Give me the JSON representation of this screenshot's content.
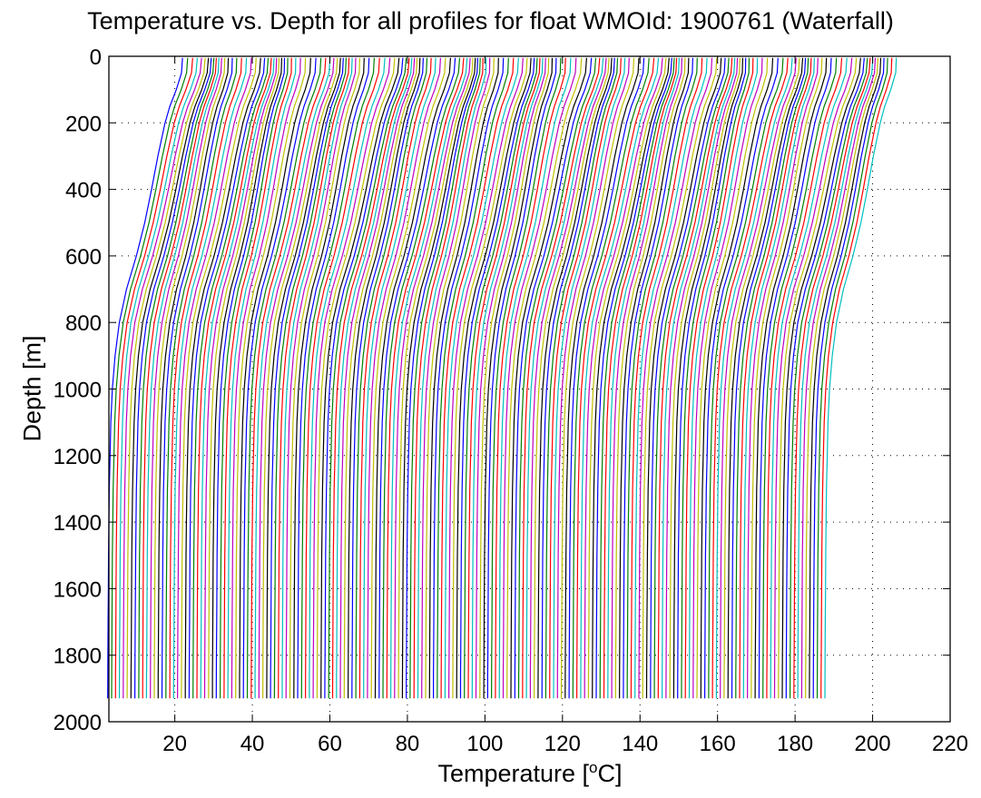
{
  "figure": {
    "title": "Temperature vs. Depth for all profiles for float WMOId: 1900761 (Waterfall)",
    "xlabel_text": "Temperature [",
    "xlabel_sup": "o",
    "xlabel_unit": "C]",
    "ylabel": "Depth [m]"
  },
  "chart_data": {
    "type": "line",
    "title": "Temperature vs. Depth for all profiles for float WMOId: 1900761 (Waterfall)",
    "xlabel": "Temperature [oC]",
    "ylabel": "Depth [m]",
    "xlim": [
      3,
      220
    ],
    "ylim": [
      2000,
      0
    ],
    "y_reversed": true,
    "grid": "dotted",
    "legend": "none",
    "xticks": [
      20,
      40,
      60,
      80,
      100,
      120,
      140,
      160,
      180,
      200,
      220
    ],
    "yticks": [
      0,
      200,
      400,
      600,
      800,
      1000,
      1200,
      1400,
      1600,
      1800,
      2000
    ],
    "colors": [
      "#0000ff",
      "#008000",
      "#ff0000",
      "#00bfbf",
      "#bf00bf",
      "#bfbf00",
      "#000000"
    ],
    "series_description": "Waterfall plot: about 186 temperature profiles, each offset by 1 degree C from the previous one",
    "num_profiles": 186,
    "offset_per_profile": 1,
    "depths": [
      5,
      50,
      100,
      150,
      200,
      300,
      400,
      500,
      600,
      700,
      800,
      900,
      1000,
      1100,
      1200,
      1300,
      1400,
      1500,
      1600,
      1700,
      1800,
      1860,
      1930
    ],
    "representative_profile": {
      "name": "first profile (no offset)",
      "temperature": [
        21.5,
        21.3,
        20.0,
        18.4,
        17.2,
        15.4,
        13.8,
        12.1,
        10.0,
        7.5,
        5.7,
        4.6,
        3.9,
        3.5,
        3.3,
        3.1,
        3.0,
        2.9,
        2.85,
        2.8,
        2.75,
        2.72,
        2.7
      ]
    }
  }
}
